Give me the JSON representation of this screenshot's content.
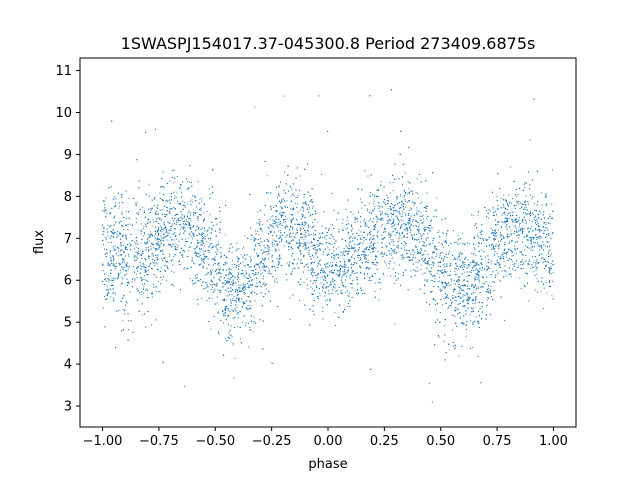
{
  "chart_data": {
    "type": "scatter",
    "title": "1SWASPJ154017.37-045300.8 Period 273409.6875s",
    "xlabel": "phase",
    "ylabel": "flux",
    "xlim": [
      -1.1,
      1.1
    ],
    "ylim": [
      2.5,
      11.3
    ],
    "x_ticks": [
      -1.0,
      -0.75,
      -0.5,
      -0.25,
      0.0,
      0.25,
      0.5,
      0.75,
      1.0
    ],
    "x_tick_labels": [
      "−1.00",
      "−0.75",
      "−0.50",
      "−0.25",
      "0.00",
      "0.25",
      "0.50",
      "0.75",
      "1.00"
    ],
    "y_ticks": [
      3,
      4,
      5,
      6,
      7,
      8,
      9,
      10,
      11
    ],
    "y_tick_labels": [
      "3",
      "4",
      "5",
      "6",
      "7",
      "8",
      "9",
      "10",
      "11"
    ],
    "grid": false,
    "marker_color": "#1f77b4",
    "phase_range": [
      -1.0,
      1.0
    ],
    "envelope": {
      "phase": [
        -1.0,
        -0.9,
        -0.8,
        -0.7,
        -0.65,
        -0.6,
        -0.5,
        -0.45,
        -0.4,
        -0.3,
        -0.25,
        -0.2,
        -0.1,
        -0.03,
        0.0,
        0.05,
        0.1,
        0.2,
        0.3,
        0.35,
        0.4,
        0.5,
        0.55,
        0.6,
        0.7,
        0.75,
        0.8,
        0.9,
        0.97,
        1.0
      ],
      "median": [
        6.7,
        6.6,
        6.7,
        7.3,
        7.4,
        7.2,
        6.2,
        5.8,
        5.8,
        6.3,
        7.0,
        7.3,
        7.0,
        6.3,
        6.3,
        6.3,
        6.5,
        7.0,
        7.4,
        7.4,
        7.1,
        6.2,
        5.8,
        5.8,
        6.3,
        7.0,
        7.2,
        7.2,
        6.8,
        6.7
      ],
      "spread": [
        0.8,
        0.7,
        0.7,
        0.55,
        0.55,
        0.6,
        0.7,
        0.6,
        0.55,
        0.7,
        0.6,
        0.6,
        0.7,
        0.6,
        0.55,
        0.55,
        0.6,
        0.6,
        0.6,
        0.6,
        0.6,
        0.7,
        0.6,
        0.55,
        0.7,
        0.6,
        0.6,
        0.6,
        0.6,
        0.7
      ]
    },
    "point_count": 9000,
    "outlier_fraction": 0.01
  }
}
